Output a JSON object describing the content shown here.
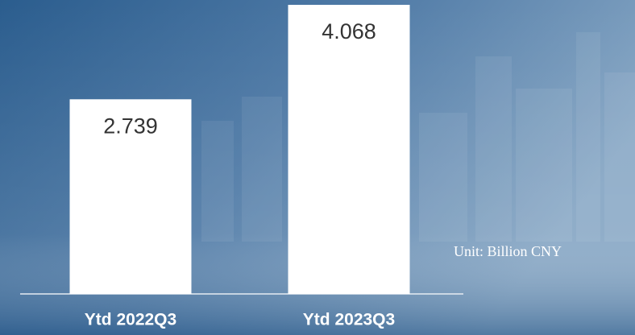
{
  "chart_data": {
    "type": "bar",
    "categories": [
      "Ytd 2022Q3",
      "Ytd 2023Q3"
    ],
    "values": [
      2.739,
      4.068
    ],
    "color": "#ffffff",
    "annotation": "Unit: Billion CNY"
  }
}
